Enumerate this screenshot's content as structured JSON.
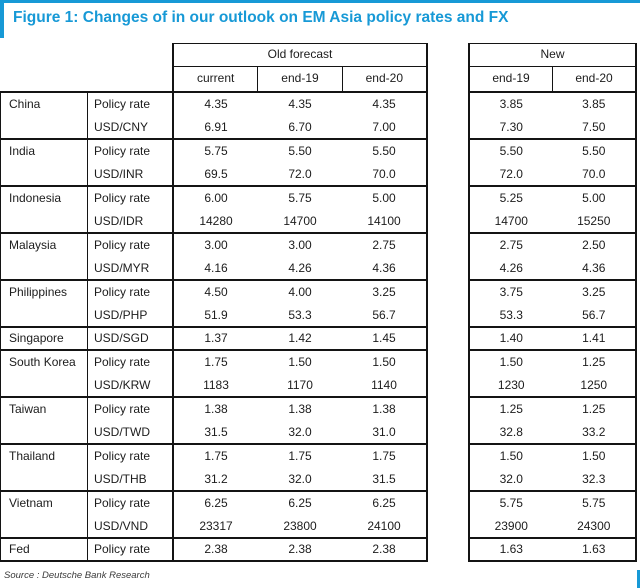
{
  "title": "Figure 1: Changes of in our outlook on EM Asia policy rates and FX",
  "source": "Source : Deutsche Bank Research",
  "colors": {
    "accent_blue": "#1799d6",
    "border": "#141414"
  },
  "table": {
    "old_header": "Old forecast",
    "new_header": "New",
    "old_columns": [
      "current",
      "end-19",
      "end-20"
    ],
    "new_columns": [
      "end-19",
      "end-20"
    ],
    "groups": [
      {
        "country": "China",
        "rows": [
          {
            "label": "Policy rate",
            "old": [
              "4.35",
              "4.35",
              "4.35"
            ],
            "new": [
              "3.85",
              "3.85"
            ]
          },
          {
            "label": "USD/CNY",
            "old": [
              "6.91",
              "6.70",
              "7.00"
            ],
            "new": [
              "7.30",
              "7.50"
            ]
          }
        ]
      },
      {
        "country": "India",
        "rows": [
          {
            "label": "Policy rate",
            "old": [
              "5.75",
              "5.50",
              "5.50"
            ],
            "new": [
              "5.50",
              "5.50"
            ]
          },
          {
            "label": "USD/INR",
            "old": [
              "69.5",
              "72.0",
              "70.0"
            ],
            "new": [
              "72.0",
              "70.0"
            ]
          }
        ]
      },
      {
        "country": "Indonesia",
        "rows": [
          {
            "label": "Policy rate",
            "old": [
              "6.00",
              "5.75",
              "5.00"
            ],
            "new": [
              "5.25",
              "5.00"
            ]
          },
          {
            "label": "USD/IDR",
            "old": [
              "14280",
              "14700",
              "14100"
            ],
            "new": [
              "14700",
              "15250"
            ]
          }
        ]
      },
      {
        "country": "Malaysia",
        "rows": [
          {
            "label": "Policy rate",
            "old": [
              "3.00",
              "3.00",
              "2.75"
            ],
            "new": [
              "2.75",
              "2.50"
            ]
          },
          {
            "label": "USD/MYR",
            "old": [
              "4.16",
              "4.26",
              "4.36"
            ],
            "new": [
              "4.26",
              "4.36"
            ]
          }
        ]
      },
      {
        "country": "Philippines",
        "rows": [
          {
            "label": "Policy rate",
            "old": [
              "4.50",
              "4.00",
              "3.25"
            ],
            "new": [
              "3.75",
              "3.25"
            ]
          },
          {
            "label": "USD/PHP",
            "old": [
              "51.9",
              "53.3",
              "56.7"
            ],
            "new": [
              "53.3",
              "56.7"
            ]
          }
        ]
      },
      {
        "country": "Singapore",
        "rows": [
          {
            "label": "USD/SGD",
            "old": [
              "1.37",
              "1.42",
              "1.45"
            ],
            "new": [
              "1.40",
              "1.41"
            ]
          }
        ]
      },
      {
        "country": "South Korea",
        "rows": [
          {
            "label": "Policy rate",
            "old": [
              "1.75",
              "1.50",
              "1.50"
            ],
            "new": [
              "1.50",
              "1.25"
            ]
          },
          {
            "label": "USD/KRW",
            "old": [
              "1183",
              "1170",
              "1140"
            ],
            "new": [
              "1230",
              "1250"
            ]
          }
        ]
      },
      {
        "country": "Taiwan",
        "rows": [
          {
            "label": "Policy rate",
            "old": [
              "1.38",
              "1.38",
              "1.38"
            ],
            "new": [
              "1.25",
              "1.25"
            ]
          },
          {
            "label": "USD/TWD",
            "old": [
              "31.5",
              "32.0",
              "31.0"
            ],
            "new": [
              "32.8",
              "33.2"
            ]
          }
        ]
      },
      {
        "country": "Thailand",
        "rows": [
          {
            "label": "Policy rate",
            "old": [
              "1.75",
              "1.75",
              "1.75"
            ],
            "new": [
              "1.50",
              "1.50"
            ]
          },
          {
            "label": "USD/THB",
            "old": [
              "31.2",
              "32.0",
              "31.5"
            ],
            "new": [
              "32.0",
              "32.3"
            ]
          }
        ]
      },
      {
        "country": "Vietnam",
        "rows": [
          {
            "label": "Policy rate",
            "old": [
              "6.25",
              "6.25",
              "6.25"
            ],
            "new": [
              "5.75",
              "5.75"
            ]
          },
          {
            "label": "USD/VND",
            "old": [
              "23317",
              "23800",
              "24100"
            ],
            "new": [
              "23900",
              "24300"
            ]
          }
        ]
      },
      {
        "country": "Fed",
        "rows": [
          {
            "label": "Policy rate",
            "old": [
              "2.38",
              "2.38",
              "2.38"
            ],
            "new": [
              "1.63",
              "1.63"
            ]
          }
        ]
      }
    ]
  }
}
